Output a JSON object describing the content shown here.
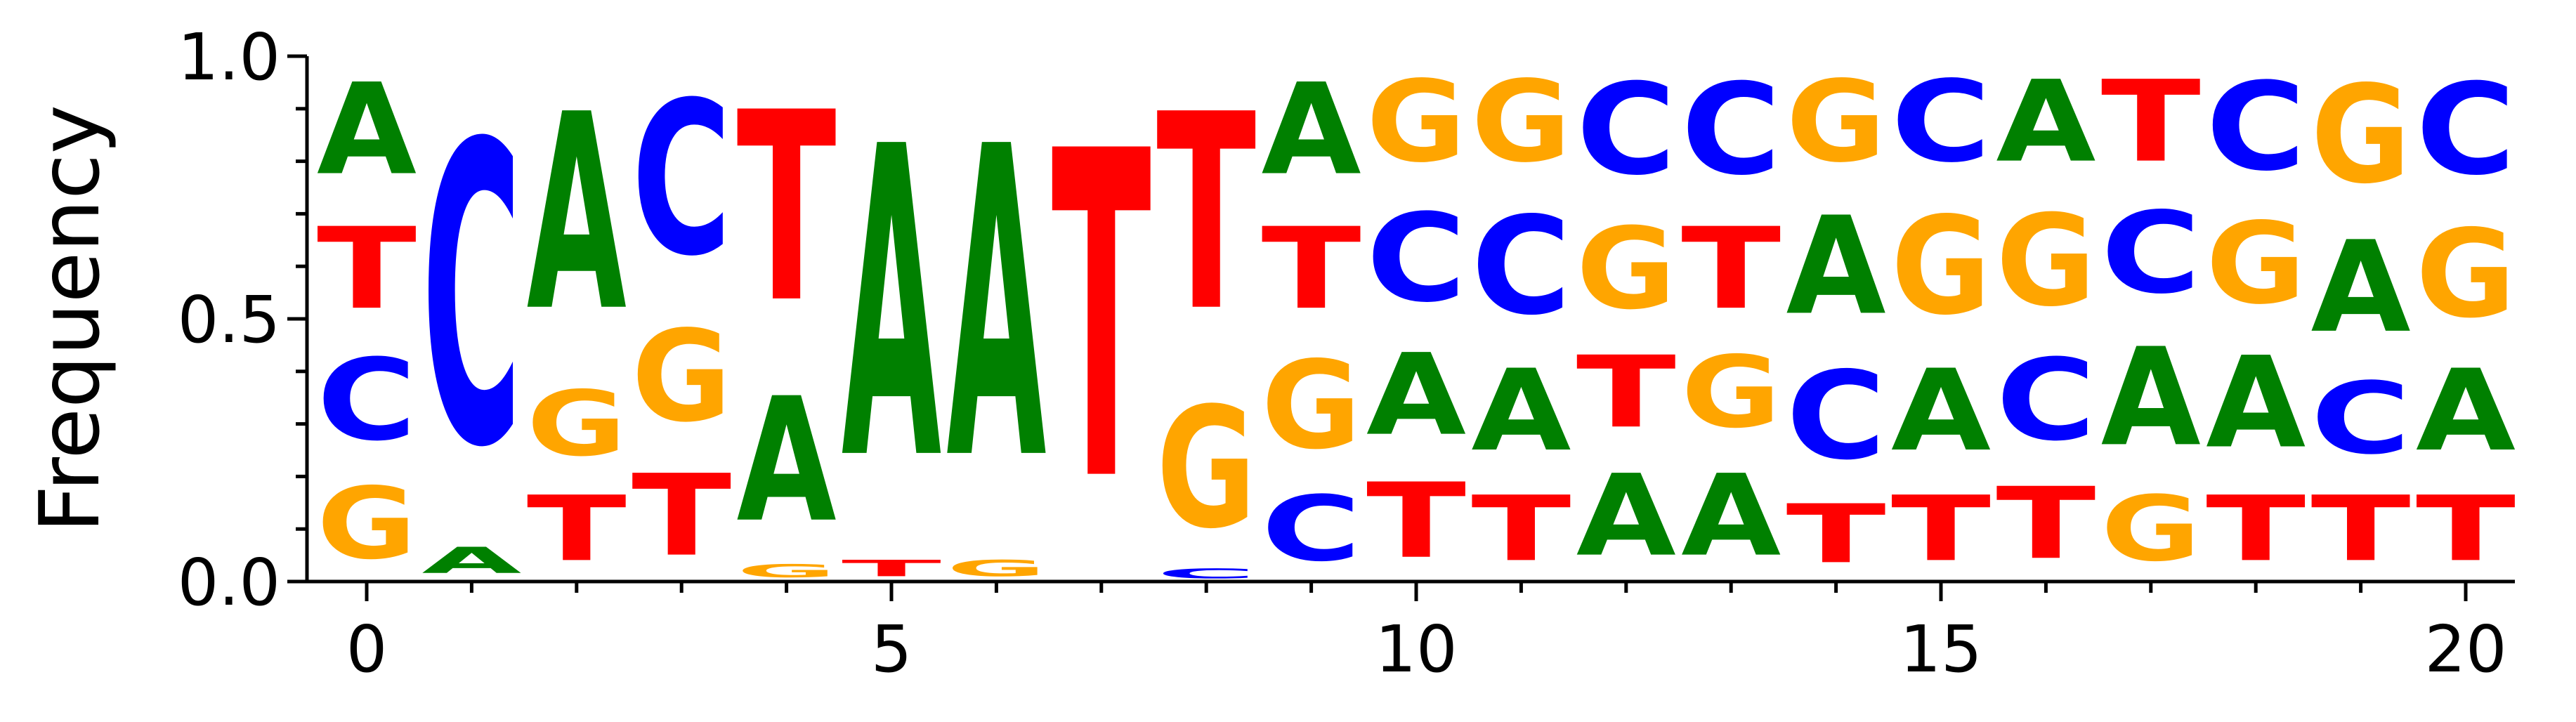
{
  "chart_data": {
    "type": "sequence-logo",
    "title": "",
    "xlabel": "",
    "ylabel": "Frequency",
    "ylim": [
      0,
      1
    ],
    "xlim": [
      -0.7,
      20.5
    ],
    "yticks": [
      "0.0",
      "0.5",
      "1.0"
    ],
    "xticks": [
      "0",
      "5",
      "10",
      "15",
      "20"
    ],
    "colors": {
      "A": "#008000",
      "C": "#0000ff",
      "G": "#ffa500",
      "T": "#ff0000"
    },
    "positions": [
      {
        "pos": 0,
        "letters": [
          {
            "base": "G",
            "freq": 0.22
          },
          {
            "base": "C",
            "freq": 0.25
          },
          {
            "base": "T",
            "freq": 0.25
          },
          {
            "base": "A",
            "freq": 0.28
          }
        ]
      },
      {
        "pos": 1,
        "letters": [
          {
            "base": "A",
            "freq": 0.08
          },
          {
            "base": "C",
            "freq": 0.92
          }
        ]
      },
      {
        "pos": 2,
        "letters": [
          {
            "base": "T",
            "freq": 0.2
          },
          {
            "base": "G",
            "freq": 0.2
          },
          {
            "base": "A",
            "freq": 0.6
          }
        ]
      },
      {
        "pos": 3,
        "letters": [
          {
            "base": "T",
            "freq": 0.25
          },
          {
            "base": "G",
            "freq": 0.28
          },
          {
            "base": "C",
            "freq": 0.47
          }
        ]
      },
      {
        "pos": 4,
        "letters": [
          {
            "base": "G",
            "freq": 0.04
          },
          {
            "base": "A",
            "freq": 0.38
          },
          {
            "base": "T",
            "freq": 0.58
          }
        ]
      },
      {
        "pos": 5,
        "letters": [
          {
            "base": "T",
            "freq": 0.05
          },
          {
            "base": "A",
            "freq": 0.95
          }
        ]
      },
      {
        "pos": 6,
        "letters": [
          {
            "base": "G",
            "freq": 0.05
          },
          {
            "base": "A",
            "freq": 0.95
          }
        ]
      },
      {
        "pos": 7,
        "letters": [
          {
            "base": "T",
            "freq": 1.0
          }
        ]
      },
      {
        "pos": 8,
        "letters": [
          {
            "base": "C",
            "freq": 0.03
          },
          {
            "base": "G",
            "freq": 0.37
          },
          {
            "base": "T",
            "freq": 0.6
          }
        ]
      },
      {
        "pos": 9,
        "letters": [
          {
            "base": "C",
            "freq": 0.2
          },
          {
            "base": "G",
            "freq": 0.27
          },
          {
            "base": "T",
            "freq": 0.25
          },
          {
            "base": "A",
            "freq": 0.28
          }
        ]
      },
      {
        "pos": 10,
        "letters": [
          {
            "base": "T",
            "freq": 0.23
          },
          {
            "base": "A",
            "freq": 0.25
          },
          {
            "base": "C",
            "freq": 0.27
          },
          {
            "base": "G",
            "freq": 0.25
          }
        ]
      },
      {
        "pos": 11,
        "letters": [
          {
            "base": "T",
            "freq": 0.2
          },
          {
            "base": "A",
            "freq": 0.25
          },
          {
            "base": "C",
            "freq": 0.3
          },
          {
            "base": "G",
            "freq": 0.25
          }
        ]
      },
      {
        "pos": 12,
        "letters": [
          {
            "base": "A",
            "freq": 0.25
          },
          {
            "base": "T",
            "freq": 0.22
          },
          {
            "base": "G",
            "freq": 0.25
          },
          {
            "base": "C",
            "freq": 0.28
          }
        ]
      },
      {
        "pos": 13,
        "letters": [
          {
            "base": "A",
            "freq": 0.25
          },
          {
            "base": "G",
            "freq": 0.22
          },
          {
            "base": "T",
            "freq": 0.25
          },
          {
            "base": "C",
            "freq": 0.28
          }
        ]
      },
      {
        "pos": 14,
        "letters": [
          {
            "base": "T",
            "freq": 0.18
          },
          {
            "base": "C",
            "freq": 0.27
          },
          {
            "base": "A",
            "freq": 0.3
          },
          {
            "base": "G",
            "freq": 0.25
          }
        ]
      },
      {
        "pos": 15,
        "letters": [
          {
            "base": "T",
            "freq": 0.2
          },
          {
            "base": "A",
            "freq": 0.25
          },
          {
            "base": "G",
            "freq": 0.3
          },
          {
            "base": "C",
            "freq": 0.25
          }
        ]
      },
      {
        "pos": 16,
        "letters": [
          {
            "base": "T",
            "freq": 0.22
          },
          {
            "base": "C",
            "freq": 0.25
          },
          {
            "base": "G",
            "freq": 0.28
          },
          {
            "base": "A",
            "freq": 0.25
          }
        ]
      },
      {
        "pos": 17,
        "letters": [
          {
            "base": "G",
            "freq": 0.2
          },
          {
            "base": "A",
            "freq": 0.3
          },
          {
            "base": "C",
            "freq": 0.25
          },
          {
            "base": "T",
            "freq": 0.25
          }
        ]
      },
      {
        "pos": 18,
        "letters": [
          {
            "base": "T",
            "freq": 0.2
          },
          {
            "base": "A",
            "freq": 0.28
          },
          {
            "base": "G",
            "freq": 0.25
          },
          {
            "base": "C",
            "freq": 0.27
          }
        ]
      },
      {
        "pos": 19,
        "letters": [
          {
            "base": "T",
            "freq": 0.2
          },
          {
            "base": "C",
            "freq": 0.22
          },
          {
            "base": "A",
            "freq": 0.28
          },
          {
            "base": "G",
            "freq": 0.3
          }
        ]
      },
      {
        "pos": 20,
        "letters": [
          {
            "base": "T",
            "freq": 0.2
          },
          {
            "base": "A",
            "freq": 0.25
          },
          {
            "base": "G",
            "freq": 0.27
          },
          {
            "base": "C",
            "freq": 0.28
          }
        ]
      }
    ]
  }
}
